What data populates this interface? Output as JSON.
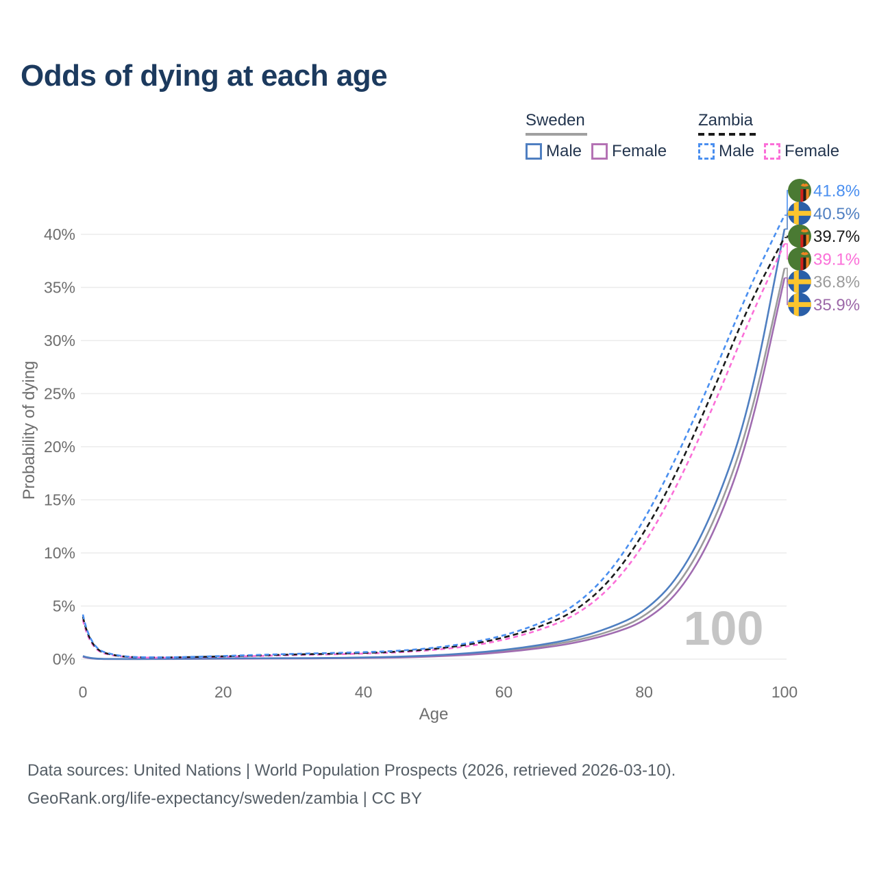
{
  "title": "Odds of dying at each age",
  "colors": {
    "title": "#1c3a5e",
    "axis_text": "#6e6e6e",
    "grid": "#ebebeb",
    "watermark": "#c5c5c5"
  },
  "legend": {
    "groups": [
      {
        "name": "Sweden",
        "style": "solid",
        "underline_color": "#a0a0a0",
        "items": [
          {
            "label": "Male",
            "color": "#4f7fc1"
          },
          {
            "label": "Female",
            "color": "#b472b4"
          }
        ]
      },
      {
        "name": "Zambia",
        "style": "dashed",
        "underline_color": "#1a1a1a",
        "items": [
          {
            "label": "Male",
            "color": "#4a8ff0"
          },
          {
            "label": "Female",
            "color": "#fb6fd8"
          }
        ]
      }
    ]
  },
  "chart_data": {
    "type": "line",
    "title": "Odds of dying at each age",
    "xlabel": "Age",
    "ylabel": "Probability of dying",
    "xlim": [
      0,
      100
    ],
    "ylim": [
      0,
      44
    ],
    "grid": true,
    "legend_position": "top-right",
    "watermark": "100",
    "x_ticks": [
      0,
      20,
      40,
      60,
      80,
      100
    ],
    "y_ticks": [
      {
        "value": 0,
        "label": "0%"
      },
      {
        "value": 5,
        "label": "5%"
      },
      {
        "value": 10,
        "label": "10%"
      },
      {
        "value": 15,
        "label": "15%"
      },
      {
        "value": 20,
        "label": "20%"
      },
      {
        "value": 25,
        "label": "25%"
      },
      {
        "value": 30,
        "label": "30%"
      },
      {
        "value": 35,
        "label": "35%"
      },
      {
        "value": 40,
        "label": "40%"
      }
    ],
    "x": [
      0,
      1,
      5,
      10,
      15,
      20,
      25,
      30,
      35,
      40,
      45,
      50,
      55,
      60,
      65,
      70,
      75,
      80,
      85,
      90,
      95,
      100
    ],
    "series": [
      {
        "id": "zambia-male",
        "name": "Zambia Male",
        "country": "zambia",
        "dash": "dashed",
        "color": "#4a8ff0",
        "label_color": "#4a8ff0",
        "end_label": "41.8%",
        "values": [
          4.2,
          1.1,
          0.25,
          0.15,
          0.2,
          0.3,
          0.4,
          0.5,
          0.57,
          0.65,
          0.78,
          1.05,
          1.5,
          2.2,
          3.3,
          4.9,
          8.0,
          13.0,
          19.5,
          27.0,
          35.0,
          41.8
        ]
      },
      {
        "id": "sweden-male",
        "name": "Sweden Male",
        "country": "sweden",
        "dash": "solid",
        "color": "#4f7fc1",
        "label_color": "#4f7fc1",
        "end_label": "40.5%",
        "values": [
          0.3,
          0.03,
          0.01,
          0.01,
          0.04,
          0.07,
          0.08,
          0.09,
          0.11,
          0.15,
          0.22,
          0.35,
          0.55,
          0.85,
          1.3,
          1.9,
          2.9,
          4.4,
          7.7,
          14.0,
          23.5,
          40.5
        ]
      },
      {
        "id": "zambia-all",
        "name": "Zambia Both sexes",
        "country": "zambia",
        "dash": "dashed",
        "color": "#1a1a1a",
        "label_color": "#1a1a1a",
        "end_label": "39.7%",
        "values": [
          4.0,
          1.0,
          0.22,
          0.14,
          0.18,
          0.26,
          0.35,
          0.44,
          0.5,
          0.58,
          0.7,
          0.95,
          1.35,
          2.0,
          3.0,
          4.4,
          7.2,
          11.8,
          18.0,
          25.5,
          33.5,
          39.7
        ]
      },
      {
        "id": "zambia-female",
        "name": "Zambia Female",
        "country": "zambia",
        "dash": "dashed",
        "color": "#fb6fd8",
        "label_color": "#fb6fd8",
        "end_label": "39.1%",
        "values": [
          3.7,
          0.9,
          0.2,
          0.12,
          0.16,
          0.22,
          0.3,
          0.38,
          0.44,
          0.52,
          0.63,
          0.85,
          1.2,
          1.8,
          2.7,
          4.0,
          6.5,
          10.7,
          16.7,
          24.0,
          32.0,
          39.1
        ]
      },
      {
        "id": "sweden-all",
        "name": "Sweden Both sexes",
        "country": "sweden",
        "dash": "solid",
        "color": "#9b9b9b",
        "label_color": "#9b9b9b",
        "end_label": "36.8%",
        "values": [
          0.25,
          0.02,
          0.01,
          0.01,
          0.03,
          0.05,
          0.06,
          0.07,
          0.09,
          0.12,
          0.18,
          0.3,
          0.48,
          0.75,
          1.15,
          1.7,
          2.55,
          3.9,
          6.9,
          12.8,
          22.0,
          36.8
        ]
      },
      {
        "id": "sweden-female",
        "name": "Sweden Female",
        "country": "sweden",
        "dash": "solid",
        "color": "#a06cb0",
        "label_color": "#9c68a8",
        "end_label": "35.9%",
        "values": [
          0.22,
          0.02,
          0.01,
          0.01,
          0.02,
          0.04,
          0.05,
          0.06,
          0.08,
          0.1,
          0.15,
          0.25,
          0.4,
          0.65,
          1.0,
          1.5,
          2.3,
          3.5,
          6.2,
          11.8,
          20.8,
          35.9
        ]
      }
    ]
  },
  "flags": {
    "sweden": {
      "blue": "#2a5fa8",
      "yellow": "#fcc52e"
    },
    "zambia": {
      "green": "#4a7a33",
      "red": "#d2221c",
      "black": "#211c18",
      "orange": "#ee8422"
    }
  },
  "footer": {
    "line1": "Data sources: United Nations | World Population Prospects (2026, retrieved 2026-03-10).",
    "line2": "GeoRank.org/life-expectancy/sweden/zambia | CC BY"
  }
}
